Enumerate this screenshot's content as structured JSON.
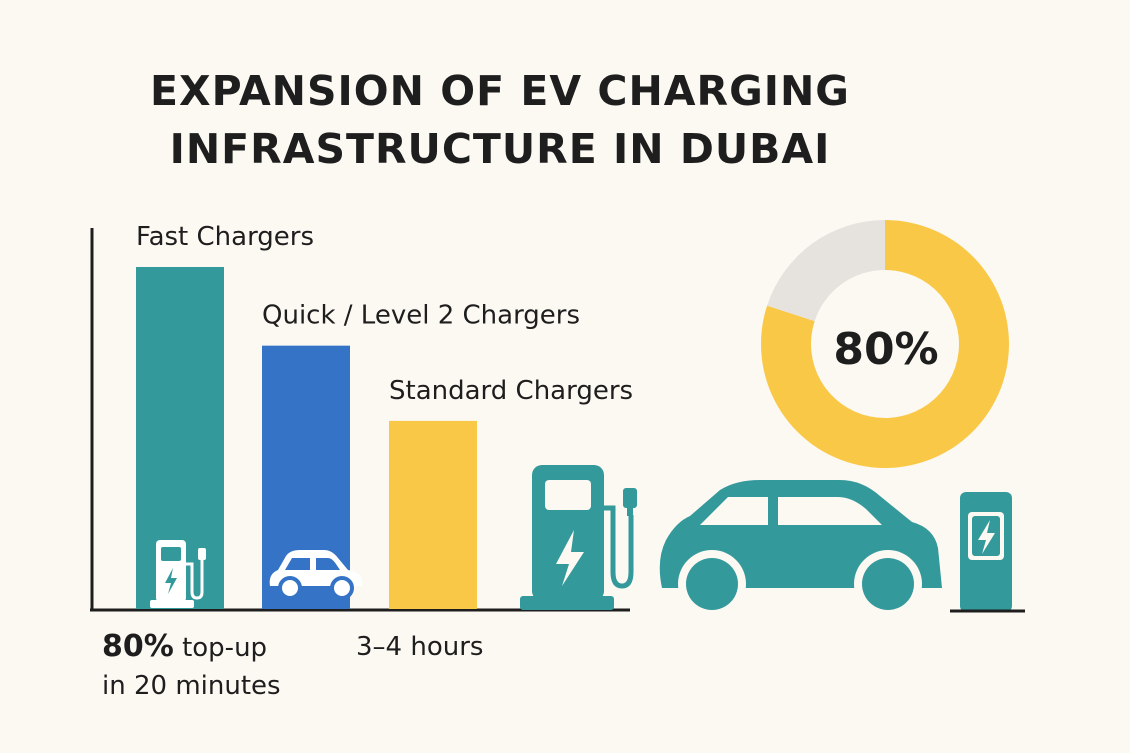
{
  "title": {
    "line1": "EXPANSION OF EV CHARGING",
    "line2": "INFRASTRUCTURE IN DUBAI"
  },
  "chart_data": [
    {
      "type": "bar",
      "categories": [
        "Fast Chargers",
        "Quick / Level 2 Chargers",
        "Standard Chargers"
      ],
      "values": [
        100,
        77,
        55
      ],
      "colors": [
        "#34999b",
        "#3573c6",
        "#f9c846"
      ],
      "title": "",
      "xlabel": "",
      "ylabel": "",
      "ylim": [
        0,
        100
      ],
      "legend": "none",
      "grid": false
    },
    {
      "type": "pie",
      "style": "donut",
      "categories": [
        "",
        ""
      ],
      "values": [
        80,
        20
      ],
      "colors": [
        "#f9c846",
        "#e6e3de"
      ],
      "center_label": "80%"
    }
  ],
  "captions": {
    "fast_value": "80%",
    "fast_text_1": "top-up",
    "fast_text_2": "in 20 minutes",
    "standard_text": "3–4 hours"
  },
  "colors": {
    "teal": "#34999b",
    "blue": "#3573c6",
    "yellow": "#f9c846",
    "grey": "#e6e3de",
    "background": "#fcf9f3"
  },
  "icons": [
    "charging-station-icon",
    "car-icon",
    "lightning-bolt-icon",
    "charging-pillar-icon"
  ]
}
